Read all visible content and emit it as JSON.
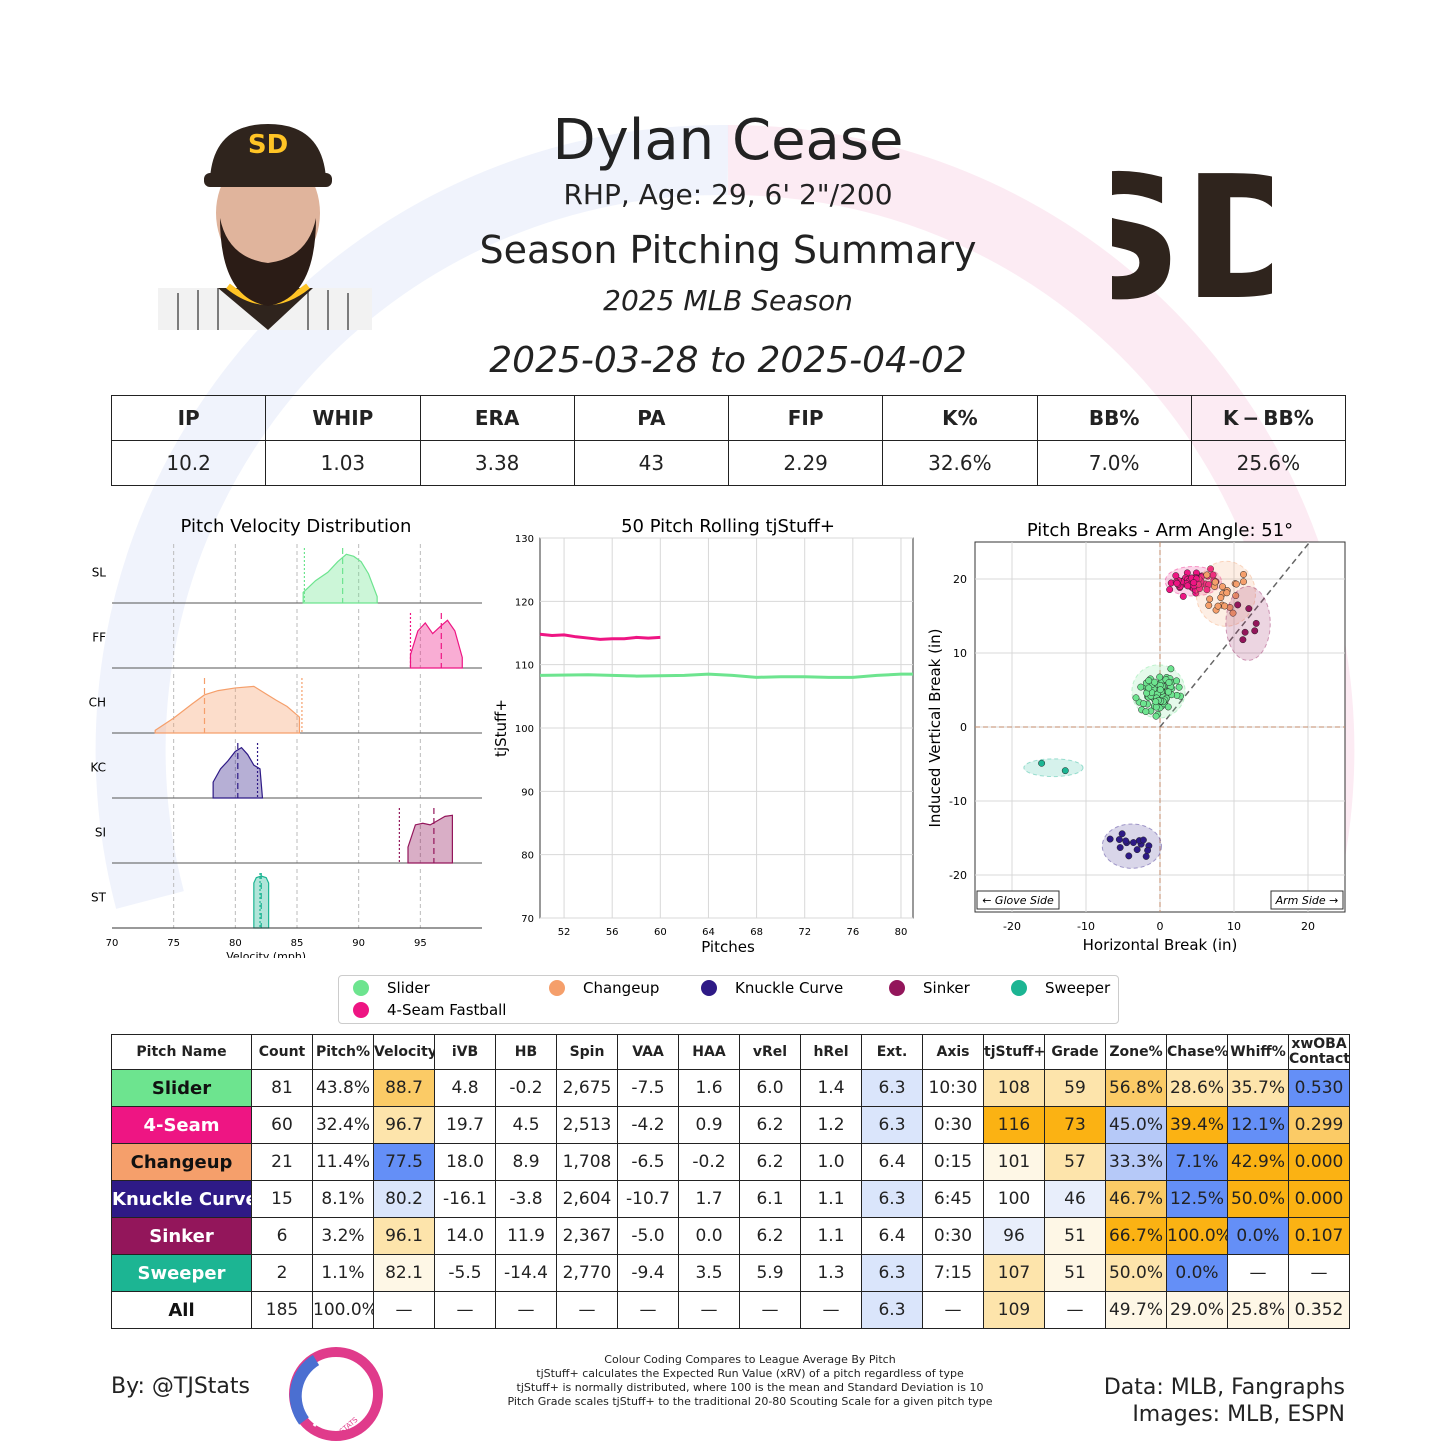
{
  "player": {
    "name": "Dylan Cease",
    "bio": "RHP, Age: 29, 6' 2\"/200",
    "summary_title": "Season Pitching Summary",
    "season": "2025 MLB Season",
    "date_range": "2025-03-28 to 2025-04-02"
  },
  "headline_stats": {
    "headers": [
      "IP",
      "WHIP",
      "ERA",
      "PA",
      "FIP",
      "K%",
      "BB%",
      "K − BB%"
    ],
    "values": [
      "10.2",
      "1.03",
      "3.38",
      "43",
      "2.29",
      "32.6%",
      "7.0%",
      "25.6%"
    ]
  },
  "colors": {
    "Slider": "#6de48f",
    "4-Seam Fastball": "#ee1583",
    "Changeup": "#f59f6b",
    "Knuckle Curve": "#2e1a86",
    "Sinker": "#93165b",
    "Sweeper": "#1cb593",
    "team_brown": "#2f241d",
    "team_gold": "#ffc425"
  },
  "chart_data": [
    {
      "type": "area",
      "title": "Pitch Velocity Distribution",
      "xlabel": "Velocity (mph)",
      "xlim": [
        70,
        100
      ],
      "xticks": [
        70,
        75,
        80,
        85,
        90,
        95
      ],
      "series": [
        {
          "name": "SL",
          "pitch": "Slider",
          "min": 85.5,
          "max": 91.5,
          "mean": 88.7,
          "league_mean": 85.6,
          "x": [
            85.5,
            86.5,
            87.5,
            88.3,
            89.0,
            89.6,
            90.2,
            90.8,
            91.5
          ],
          "y": [
            0.2,
            0.42,
            0.58,
            0.78,
            0.92,
            0.88,
            0.78,
            0.55,
            0.12
          ]
        },
        {
          "name": "FF",
          "pitch": "4-Seam Fastball",
          "min": 94.2,
          "max": 98.4,
          "mean": 96.7,
          "league_mean": 94.2,
          "x": [
            94.2,
            94.8,
            95.4,
            96.0,
            96.6,
            97.2,
            97.8,
            98.4
          ],
          "y": [
            0.25,
            0.7,
            0.85,
            0.65,
            0.78,
            0.9,
            0.7,
            0.2
          ]
        },
        {
          "name": "CH",
          "pitch": "Changeup",
          "min": 73.5,
          "max": 85.2,
          "mean": 77.5,
          "league_mean": 85.4,
          "x": [
            73.5,
            75.0,
            76.5,
            77.5,
            78.6,
            80.0,
            81.5,
            82.4,
            83.3,
            84.2,
            85.2
          ],
          "y": [
            0.05,
            0.28,
            0.55,
            0.72,
            0.8,
            0.85,
            0.88,
            0.75,
            0.62,
            0.5,
            0.3
          ]
        },
        {
          "name": "KC",
          "pitch": "Knuckle Curve",
          "min": 78.2,
          "max": 82.2,
          "mean": 80.2,
          "league_mean": 81.8,
          "x": [
            78.2,
            78.8,
            79.4,
            80.0,
            80.5,
            81.0,
            81.5,
            82.0,
            82.2
          ],
          "y": [
            0.3,
            0.55,
            0.7,
            0.88,
            0.95,
            0.82,
            0.62,
            0.55,
            0.0
          ]
        },
        {
          "name": "SI",
          "pitch": "Sinker",
          "min": 94.0,
          "max": 97.6,
          "mean": 96.1,
          "league_mean": 93.3,
          "x": [
            94.0,
            94.6,
            95.2,
            95.8,
            96.4,
            97.0,
            97.6
          ],
          "y": [
            0.3,
            0.72,
            0.75,
            0.72,
            0.8,
            0.88,
            0.9
          ]
        },
        {
          "name": "ST",
          "pitch": "Sweeper",
          "min": 81.5,
          "max": 82.7,
          "mean": 82.1,
          "league_mean": 82.0,
          "x": [
            81.5,
            81.7,
            82.1,
            82.5,
            82.7
          ],
          "y": [
            0.85,
            0.95,
            0.98,
            0.95,
            0.85
          ]
        }
      ]
    },
    {
      "type": "line",
      "title": "50 Pitch Rolling tjStuff+",
      "xlabel": "Pitches",
      "ylabel": "tjStuff+",
      "xlim": [
        50,
        81
      ],
      "ylim": [
        70,
        130
      ],
      "xticks": [
        52,
        56,
        60,
        64,
        68,
        72,
        76,
        80
      ],
      "yticks": [
        70,
        80,
        90,
        100,
        110,
        120,
        130
      ],
      "series": [
        {
          "pitch": "4-Seam Fastball",
          "x": [
            50,
            51,
            52,
            53,
            54,
            55,
            56,
            57,
            58,
            59,
            60
          ],
          "y": [
            114.8,
            114.6,
            114.7,
            114.4,
            114.2,
            114.0,
            114.1,
            114.1,
            114.3,
            114.2,
            114.3
          ]
        },
        {
          "pitch": "Slider",
          "x": [
            50,
            54,
            58,
            62,
            64,
            66,
            68,
            70,
            72,
            74,
            76,
            78,
            80,
            81
          ],
          "y": [
            108.3,
            108.4,
            108.2,
            108.3,
            108.5,
            108.3,
            108.0,
            108.1,
            108.1,
            108.0,
            108.0,
            108.3,
            108.5,
            108.5
          ]
        }
      ]
    },
    {
      "type": "scatter",
      "title": "Pitch Breaks - Arm Angle: 51°",
      "xlabel": "Horizontal Break (in)",
      "ylabel": "Induced Vertical Break (in)",
      "xlim": [
        -25,
        25
      ],
      "ylim": [
        -25,
        25
      ],
      "xticks": [
        -20,
        -10,
        0,
        10,
        20
      ],
      "yticks": [
        -20,
        -10,
        0,
        10,
        20
      ],
      "arm_angle_deg": 51,
      "annotations": [
        "← Glove Side",
        "Arm Side →"
      ],
      "groups": [
        {
          "pitch": "Slider",
          "cx": -0.2,
          "cy": 4.8,
          "sx": 1.8,
          "sy": 1.8,
          "n": 81
        },
        {
          "pitch": "4-Seam Fastball",
          "cx": 4.5,
          "cy": 19.7,
          "sx": 1.9,
          "sy": 1.0,
          "n": 60
        },
        {
          "pitch": "Changeup",
          "cx": 8.9,
          "cy": 18.0,
          "sx": 2.0,
          "sy": 2.2,
          "n": 21
        },
        {
          "pitch": "Knuckle Curve",
          "cx": -3.8,
          "cy": -16.1,
          "sx": 2.0,
          "sy": 1.5,
          "n": 15
        },
        {
          "pitch": "Sinker",
          "cx": 11.9,
          "cy": 14.0,
          "sx": 1.5,
          "sy": 2.5,
          "n": 6
        },
        {
          "pitch": "Sweeper",
          "cx": -14.4,
          "cy": -5.5,
          "sx": 2.0,
          "sy": 0.6,
          "n": 2
        }
      ],
      "explicit_points": {
        "Sweeper": [
          [
            -16.0,
            -4.9
          ],
          [
            -12.8,
            -5.9
          ]
        ],
        "Sinker": [
          [
            10.5,
            16.5
          ],
          [
            12.0,
            16.0
          ],
          [
            12.8,
            13.0
          ],
          [
            11.5,
            12.8
          ],
          [
            13.0,
            14.0
          ],
          [
            11.2,
            11.8
          ]
        ]
      }
    }
  ],
  "legend": {
    "items": [
      {
        "label": "Slider",
        "pitch": "Slider"
      },
      {
        "label": "Changeup",
        "pitch": "Changeup"
      },
      {
        "label": "Knuckle Curve",
        "pitch": "Knuckle Curve"
      },
      {
        "label": "Sinker",
        "pitch": "Sinker"
      },
      {
        "label": "Sweeper",
        "pitch": "Sweeper"
      },
      {
        "label": "4-Seam Fastball",
        "pitch": "4-Seam Fastball"
      }
    ]
  },
  "pitch_table": {
    "headers": [
      "Pitch Name",
      "Count",
      "Pitch%",
      "Velocity",
      "iVB",
      "HB",
      "Spin",
      "VAA",
      "HAA",
      "vRel",
      "hRel",
      "Ext.",
      "Axis",
      "tjStuff+",
      "Grade",
      "Zone%",
      "Chase%",
      "Whiff%",
      "xwOBA Contact"
    ],
    "rows": [
      {
        "name": "Slider",
        "name_bg": "#6de48f",
        "name_color": "#111111",
        "cells": [
          "81",
          "43.8%",
          "88.7",
          "4.8",
          "-0.2",
          "2,675",
          "-7.5",
          "1.6",
          "6.0",
          "1.4",
          "6.3",
          "10:30",
          "108",
          "59",
          "56.8%",
          "28.6%",
          "35.7%",
          "0.530"
        ],
        "bgs": [
          "",
          "",
          "#fbcb66",
          "",
          "",
          "",
          "",
          "",
          "",
          "",
          "#dae5fb",
          "",
          "#fde4ab",
          "#fde4ab",
          "#fbcb66",
          "#fde4ab",
          "#fde4ab",
          "#648ff7"
        ]
      },
      {
        "name": "4-Seam",
        "name_bg": "#ee1583",
        "name_color": "#ffffff",
        "cells": [
          "60",
          "32.4%",
          "96.7",
          "19.7",
          "4.5",
          "2,513",
          "-4.2",
          "0.9",
          "6.2",
          "1.2",
          "6.3",
          "0:30",
          "116",
          "73",
          "45.0%",
          "39.4%",
          "12.1%",
          "0.299"
        ],
        "bgs": [
          "",
          "",
          "#fde4ab",
          "",
          "",
          "",
          "",
          "",
          "",
          "",
          "#dae5fb",
          "",
          "#fbb213",
          "#fbb213",
          "#b6c9f8",
          "#fbb213",
          "#648ff7",
          "#fbcb66"
        ]
      },
      {
        "name": "Changeup",
        "name_bg": "#f59f6b",
        "name_color": "#111111",
        "cells": [
          "21",
          "11.4%",
          "77.5",
          "18.0",
          "8.9",
          "1,708",
          "-6.5",
          "-0.2",
          "6.2",
          "1.0",
          "6.4",
          "0:15",
          "101",
          "57",
          "33.3%",
          "7.1%",
          "42.9%",
          "0.000"
        ],
        "bgs": [
          "",
          "",
          "#648ff7",
          "",
          "",
          "",
          "",
          "",
          "",
          "",
          "",
          "",
          "#fef7e6",
          "#fde4ab",
          "#b6c9f8",
          "#648ff7",
          "#fbb213",
          "#fbb213"
        ]
      },
      {
        "name": "Knuckle Curve",
        "name_bg": "#2e1a86",
        "name_color": "#ffffff",
        "cells": [
          "15",
          "8.1%",
          "80.2",
          "-16.1",
          "-3.8",
          "2,604",
          "-10.7",
          "1.7",
          "6.1",
          "1.1",
          "6.3",
          "6:45",
          "100",
          "46",
          "46.7%",
          "12.5%",
          "50.0%",
          "0.000"
        ],
        "bgs": [
          "",
          "",
          "#dae5fb",
          "",
          "",
          "",
          "",
          "",
          "",
          "",
          "#dae5fb",
          "",
          "",
          "#e8eefb",
          "#fbcb66",
          "#648ff7",
          "#fbb213",
          "#fbb213"
        ]
      },
      {
        "name": "Sinker",
        "name_bg": "#93165b",
        "name_color": "#ffffff",
        "cells": [
          "6",
          "3.2%",
          "96.1",
          "14.0",
          "11.9",
          "2,367",
          "-5.0",
          "0.0",
          "6.2",
          "1.1",
          "6.4",
          "0:30",
          "96",
          "51",
          "66.7%",
          "100.0%",
          "0.0%",
          "0.107"
        ],
        "bgs": [
          "",
          "",
          "#fde4ab",
          "",
          "",
          "",
          "",
          "",
          "",
          "",
          "",
          "",
          "#e8eefb",
          "#fef7e6",
          "#fbb213",
          "#fbb213",
          "#648ff7",
          "#fbb213"
        ]
      },
      {
        "name": "Sweeper",
        "name_bg": "#1cb593",
        "name_color": "#ffffff",
        "cells": [
          "2",
          "1.1%",
          "82.1",
          "-5.5",
          "-14.4",
          "2,770",
          "-9.4",
          "3.5",
          "5.9",
          "1.3",
          "6.3",
          "7:15",
          "107",
          "51",
          "50.0%",
          "0.0%",
          "—",
          "—"
        ],
        "bgs": [
          "",
          "",
          "#fef7e6",
          "",
          "",
          "",
          "",
          "",
          "",
          "",
          "#dae5fb",
          "",
          "#fde4ab",
          "#fef7e6",
          "#fde4ab",
          "#648ff7",
          "",
          ""
        ]
      },
      {
        "name": "All",
        "name_bg": "#ffffff",
        "name_color": "#111111",
        "cells": [
          "185",
          "100.0%",
          "—",
          "—",
          "—",
          "—",
          "—",
          "—",
          "—",
          "—",
          "6.3",
          "—",
          "109",
          "—",
          "49.7%",
          "29.0%",
          "25.8%",
          "0.352"
        ],
        "bgs": [
          "",
          "",
          "",
          "",
          "",
          "",
          "",
          "",
          "",
          "",
          "#dae5fb",
          "",
          "#fde4ab",
          "",
          "#fef7e6",
          "#fef7e6",
          "#fef7e6",
          "#fef7e6"
        ]
      }
    ]
  },
  "footer": {
    "byline": "By: @TJStats",
    "notes": [
      "Colour Coding Compares to League Average By Pitch",
      "tjStuff+ calculates the Expected Run Value (xRV) of a pitch regardless of type",
      "tjStuff+ is normally distributed, where 100 is the mean and Standard Deviation is 10",
      "Pitch Grade scales tjStuff+ to the traditional 20-80 Scouting Scale for a given pitch type"
    ],
    "data_source": "Data: MLB, Fangraphs",
    "image_source": "Images: MLB, ESPN",
    "logo_text": "STATS",
    "team_logo_text": "SD",
    "cap_logo_text": "SD"
  }
}
